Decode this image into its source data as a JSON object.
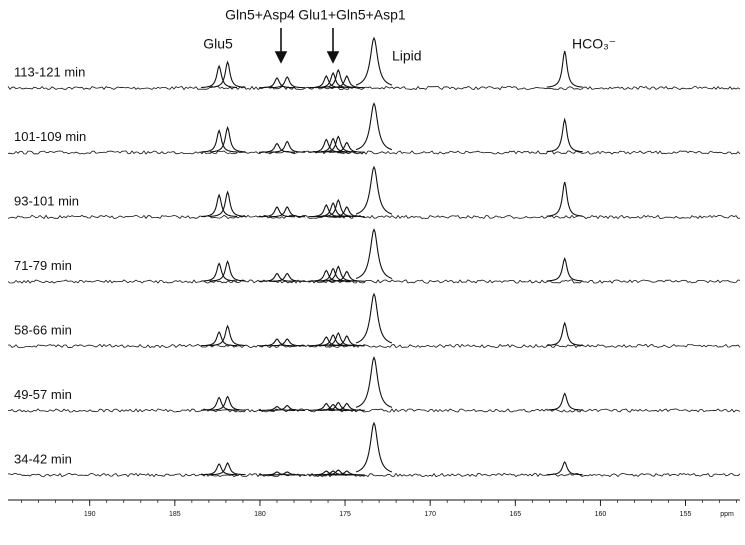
{
  "chart_data": {
    "type": "stacked-spectra",
    "x_label": "ppm",
    "xlim": [
      194.8,
      151.8
    ],
    "xticks": [
      190,
      185,
      180,
      175,
      170,
      165,
      160,
      155
    ],
    "x": [
      182.4,
      181.9,
      179.0,
      178.4,
      176.1,
      175.7,
      175.4,
      174.9,
      173.3,
      162.1
    ],
    "color": "#111111",
    "annotations": [
      "Glu5",
      "Gln5+Asp4",
      "Glu1+Gln5+Asp1",
      "Lipid",
      "HCO₃⁻"
    ],
    "series": [
      {
        "name": "113-121 min",
        "values": [
          22,
          26,
          10,
          11,
          12,
          15,
          18,
          12,
          50,
          37
        ]
      },
      {
        "name": "101-109 min",
        "values": [
          22,
          25,
          9,
          11,
          13,
          14,
          16,
          10,
          49,
          33
        ]
      },
      {
        "name": "93-101 min",
        "values": [
          22,
          25,
          10,
          10,
          12,
          14,
          17,
          10,
          50,
          35
        ]
      },
      {
        "name": "71-79 min",
        "values": [
          18,
          20,
          8,
          8,
          11,
          13,
          15,
          10,
          52,
          23
        ]
      },
      {
        "name": "58-66 min",
        "values": [
          14,
          20,
          7,
          7,
          9,
          11,
          13,
          10,
          52,
          23
        ]
      },
      {
        "name": "49-57 min",
        "values": [
          13,
          14,
          4,
          5,
          7,
          6,
          8,
          7,
          53,
          17
        ]
      },
      {
        "name": "34-42 min",
        "values": [
          11,
          12,
          3,
          3,
          4,
          4,
          5,
          4,
          52,
          13
        ]
      }
    ]
  }
}
